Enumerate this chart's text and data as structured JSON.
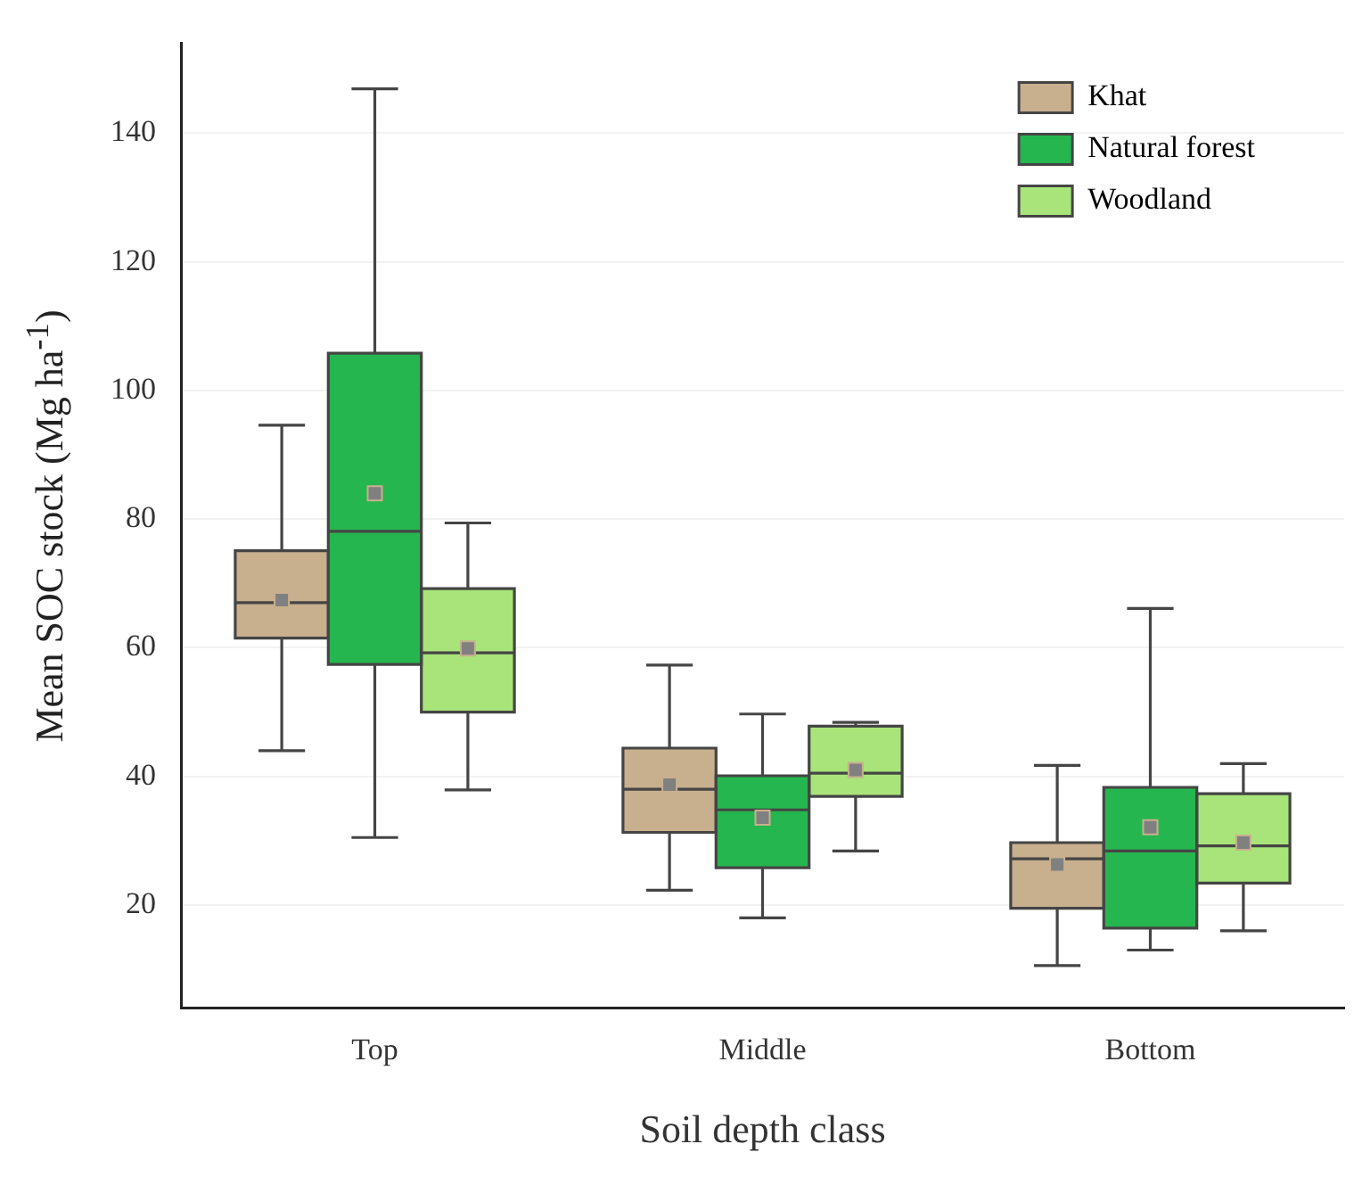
{
  "chart_data": {
    "type": "box",
    "xlabel": "Soil depth class",
    "ylabel": "Mean SOC stock (Mg ha$^{-1}$)",
    "categories": [
      "Top",
      "Middle",
      "Bottom"
    ],
    "ylim": [
      4,
      154
    ],
    "yticks": [
      20,
      40,
      60,
      80,
      100,
      120,
      140
    ],
    "grid": "y",
    "legend": "top right",
    "marker": "square",
    "series": [
      {
        "name": "Khat",
        "color": "#c8b08e",
        "boxes": [
          {
            "low": 44.0,
            "q1": 61.5,
            "median": 67.0,
            "q3": 75.1,
            "high": 94.6,
            "mean": 67.4
          },
          {
            "low": 22.3,
            "q1": 31.3,
            "median": 38.0,
            "q3": 44.4,
            "high": 57.3,
            "mean": 38.7
          },
          {
            "low": 10.6,
            "q1": 19.5,
            "median": 27.2,
            "q3": 29.7,
            "high": 41.7,
            "mean": 26.3
          }
        ]
      },
      {
        "name": "Natural forest",
        "color": "#26b64f",
        "boxes": [
          {
            "low": 30.5,
            "q1": 57.4,
            "median": 78.1,
            "q3": 105.8,
            "high": 146.9,
            "mean": 84.0
          },
          {
            "low": 18.0,
            "q1": 25.8,
            "median": 34.8,
            "q3": 40.1,
            "high": 49.7,
            "mean": 33.6
          },
          {
            "low": 13.0,
            "q1": 16.4,
            "median": 28.4,
            "q3": 38.3,
            "high": 66.1,
            "mean": 32.1
          }
        ]
      },
      {
        "name": "Woodland",
        "color": "#a8e47a",
        "boxes": [
          {
            "low": 37.9,
            "q1": 50.0,
            "median": 59.2,
            "q3": 69.2,
            "high": 79.4,
            "mean": 59.9
          },
          {
            "low": 28.4,
            "q1": 36.9,
            "median": 40.5,
            "q3": 47.8,
            "high": 48.4,
            "mean": 41.0
          },
          {
            "low": 16.0,
            "q1": 23.4,
            "median": 29.2,
            "q3": 37.3,
            "high": 42.0,
            "mean": 29.7
          }
        ]
      }
    ]
  }
}
